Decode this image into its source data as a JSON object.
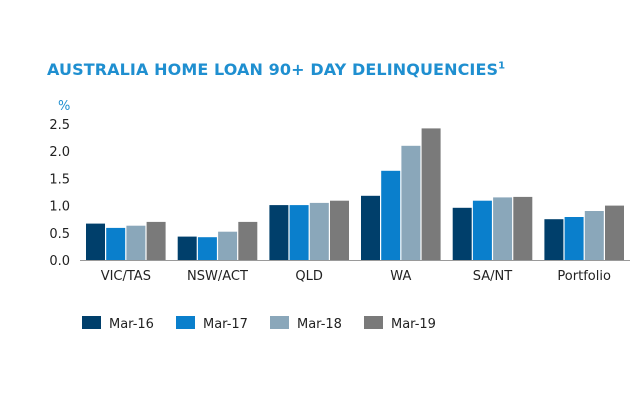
{
  "chart_data": {
    "type": "bar",
    "title": "AUSTRALIA HOME LOAN 90+ DAY DELINQUENCIES",
    "title_superscript": "1",
    "ylabel": "%",
    "ylim": [
      0,
      2.5
    ],
    "yticks": [
      "0.0",
      "0.5",
      "1.0",
      "1.5",
      "2.0",
      "2.5"
    ],
    "categories": [
      "VIC/TAS",
      "NSW/ACT",
      "QLD",
      "WA",
      "SA/NT",
      "Portfolio"
    ],
    "series": [
      {
        "name": "Mar-16",
        "color": "#003f6b",
        "values": [
          0.67,
          0.43,
          1.01,
          1.18,
          0.96,
          0.75
        ]
      },
      {
        "name": "Mar-17",
        "color": "#0a7fcc",
        "values": [
          0.59,
          0.42,
          1.01,
          1.64,
          1.09,
          0.79
        ]
      },
      {
        "name": "Mar-18",
        "color": "#8aa7ba",
        "values": [
          0.63,
          0.52,
          1.05,
          2.1,
          1.15,
          0.9
        ]
      },
      {
        "name": "Mar-19",
        "color": "#7a7a7a",
        "values": [
          0.7,
          0.7,
          1.09,
          2.42,
          1.16,
          1.0
        ]
      }
    ],
    "grid": false,
    "legend_position": "bottom"
  }
}
